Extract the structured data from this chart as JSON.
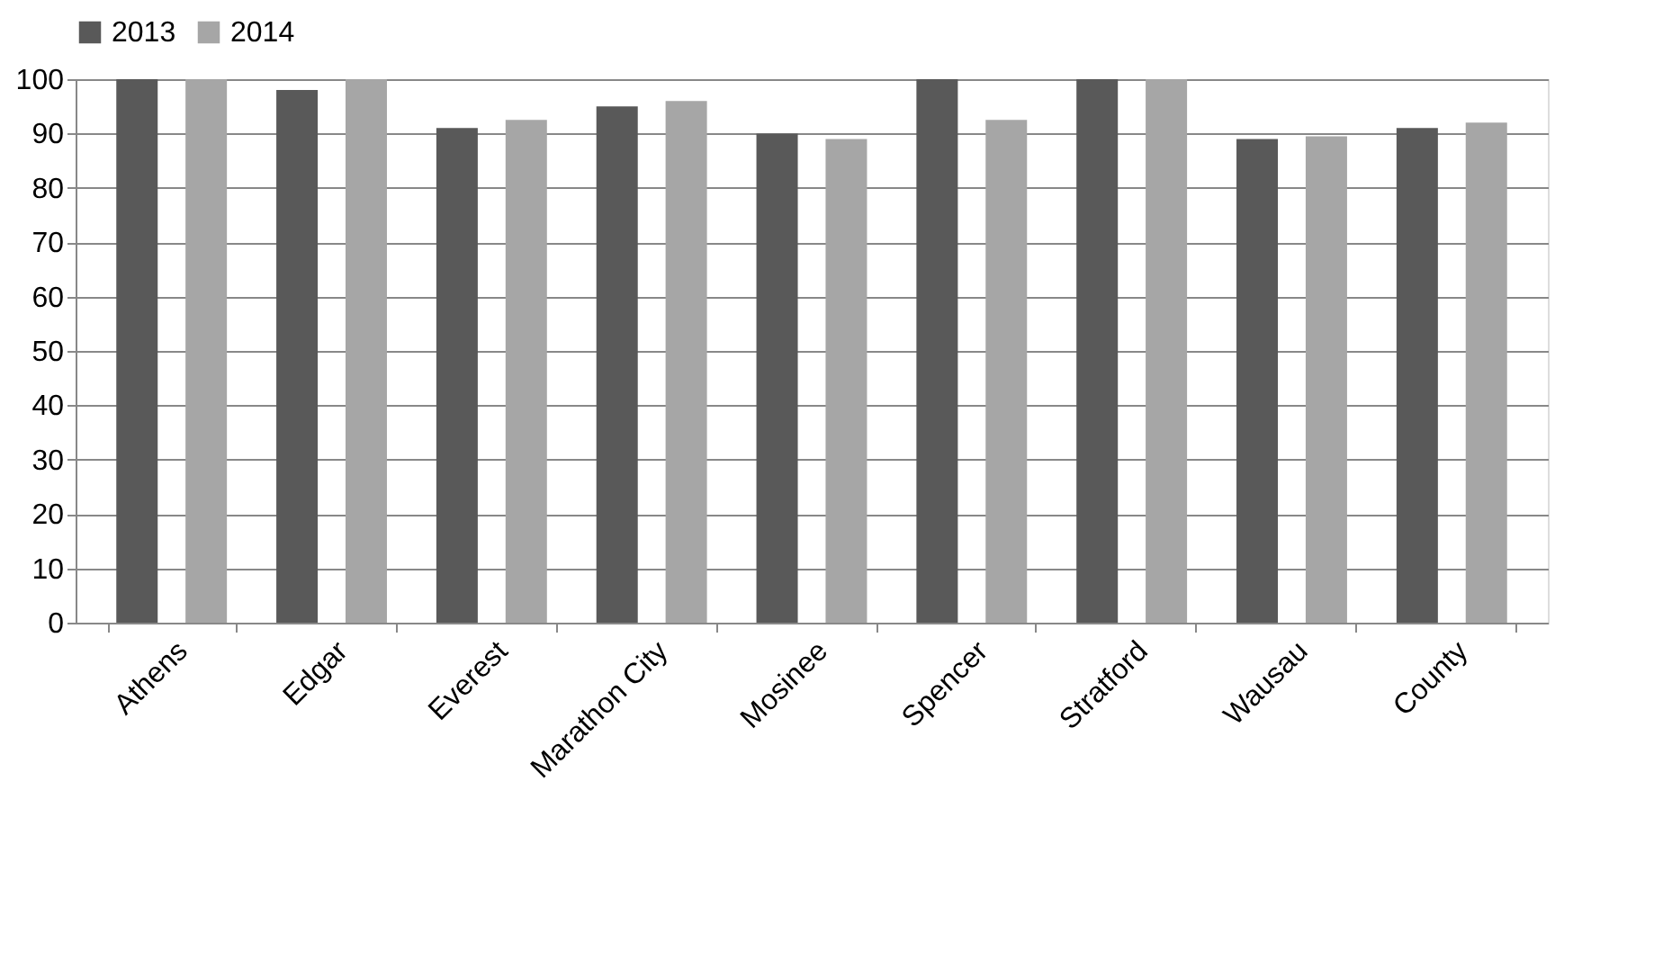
{
  "chart_data": {
    "type": "bar",
    "categories": [
      "Athens",
      "Edgar",
      "Everest",
      "Marathon City",
      "Mosinee",
      "Spencer",
      "Stratford",
      "Wausau",
      "County"
    ],
    "series": [
      {
        "name": "2013",
        "color": "#595959",
        "values": [
          100,
          98,
          91,
          95,
          90,
          100,
          100,
          89,
          91
        ]
      },
      {
        "name": "2014",
        "color": "#a6a6a6",
        "values": [
          100,
          100,
          92.5,
          96,
          89,
          92.5,
          100,
          89.5,
          92
        ]
      }
    ],
    "ylim": [
      0,
      100
    ],
    "yticks": [
      0,
      10,
      20,
      30,
      40,
      50,
      60,
      70,
      80,
      90,
      100
    ],
    "grid": "y",
    "legend": "top"
  }
}
